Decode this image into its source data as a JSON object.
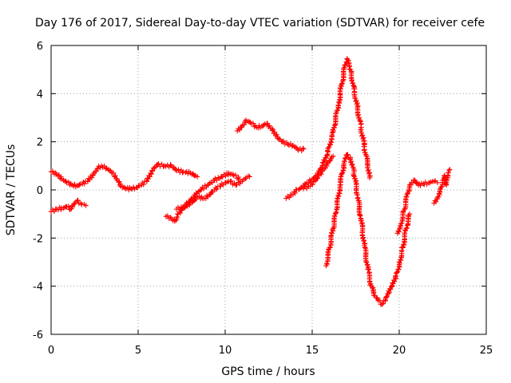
{
  "chart_data": {
    "type": "scatter",
    "title": "Day 176 of 2017, Sidereal Day-to-day VTEC variation (SDTVAR) for receiver cefe",
    "xlabel": "GPS time / hours",
    "ylabel": "SDTVAR / TECUs",
    "xlim": [
      0,
      25
    ],
    "ylim": [
      -6,
      6
    ],
    "xticks": [
      "0",
      "5",
      "10",
      "15",
      "20",
      "25"
    ],
    "yticks": [
      "-6",
      "-4",
      "-2",
      "0",
      "2",
      "4",
      "6"
    ],
    "grid": true,
    "marker": "plus",
    "color": "#ff0000",
    "series": [
      {
        "points": [
          [
            0.0,
            0.75
          ],
          [
            0.3,
            0.65
          ],
          [
            0.6,
            0.45
          ],
          [
            0.9,
            0.3
          ],
          [
            1.2,
            0.2
          ],
          [
            1.5,
            0.18
          ],
          [
            1.8,
            0.25
          ],
          [
            2.1,
            0.35
          ],
          [
            2.4,
            0.6
          ],
          [
            2.7,
            0.9
          ],
          [
            2.9,
            1.0
          ],
          [
            3.2,
            0.9
          ],
          [
            3.5,
            0.7
          ],
          [
            3.8,
            0.4
          ],
          [
            4.0,
            0.15
          ],
          [
            4.3,
            0.05
          ],
          [
            4.6,
            0.05
          ],
          [
            4.9,
            0.1
          ],
          [
            5.2,
            0.2
          ],
          [
            5.5,
            0.35
          ],
          [
            5.8,
            0.8
          ],
          [
            6.1,
            1.05
          ],
          [
            6.5,
            1.0
          ],
          [
            6.9,
            1.0
          ],
          [
            7.2,
            0.8
          ],
          [
            7.6,
            0.75
          ],
          [
            8.0,
            0.7
          ],
          [
            8.4,
            0.55
          ]
        ]
      },
      {
        "points": [
          [
            0.0,
            -0.9
          ],
          [
            0.3,
            -0.8
          ],
          [
            0.6,
            -0.75
          ],
          [
            0.9,
            -0.7
          ],
          [
            1.1,
            -0.8
          ],
          [
            1.3,
            -0.6
          ],
          [
            1.5,
            -0.45
          ],
          [
            1.7,
            -0.55
          ],
          [
            1.9,
            -0.6
          ],
          [
            2.0,
            -0.65
          ]
        ]
      },
      {
        "points": [
          [
            6.6,
            -1.1
          ],
          [
            6.9,
            -1.2
          ],
          [
            7.1,
            -1.3
          ],
          [
            7.3,
            -1.0
          ],
          [
            7.6,
            -0.75
          ],
          [
            7.9,
            -0.5
          ],
          [
            8.2,
            -0.3
          ],
          [
            8.6,
            0.0
          ],
          [
            9.0,
            0.2
          ],
          [
            9.4,
            0.4
          ],
          [
            9.8,
            0.55
          ],
          [
            10.2,
            0.7
          ],
          [
            10.5,
            0.6
          ],
          [
            10.8,
            0.45
          ]
        ]
      },
      {
        "points": [
          [
            7.2,
            -0.8
          ],
          [
            7.6,
            -0.7
          ],
          [
            8.0,
            -0.55
          ],
          [
            8.4,
            -0.3
          ],
          [
            8.8,
            -0.35
          ],
          [
            9.1,
            -0.2
          ],
          [
            9.4,
            0.0
          ],
          [
            9.7,
            0.15
          ],
          [
            10.0,
            0.3
          ],
          [
            10.3,
            0.35
          ],
          [
            10.6,
            0.2
          ],
          [
            10.9,
            0.35
          ],
          [
            11.2,
            0.5
          ],
          [
            11.4,
            0.55
          ]
        ]
      },
      {
        "points": [
          [
            10.7,
            2.45
          ],
          [
            11.0,
            2.7
          ],
          [
            11.2,
            2.9
          ],
          [
            11.5,
            2.75
          ],
          [
            11.8,
            2.6
          ],
          [
            12.1,
            2.65
          ],
          [
            12.4,
            2.75
          ],
          [
            12.7,
            2.55
          ],
          [
            13.0,
            2.2
          ],
          [
            13.3,
            2.0
          ],
          [
            13.6,
            1.9
          ],
          [
            13.9,
            1.85
          ],
          [
            14.2,
            1.65
          ],
          [
            14.5,
            1.7
          ]
        ]
      },
      {
        "points": [
          [
            13.5,
            -0.35
          ],
          [
            13.8,
            -0.2
          ],
          [
            14.1,
            0.0
          ],
          [
            14.4,
            0.1
          ],
          [
            14.7,
            0.3
          ],
          [
            15.0,
            0.45
          ],
          [
            15.3,
            0.6
          ],
          [
            15.6,
            1.0
          ],
          [
            15.9,
            1.6
          ],
          [
            16.2,
            2.4
          ],
          [
            16.5,
            3.5
          ],
          [
            16.7,
            4.4
          ],
          [
            16.9,
            5.2
          ],
          [
            17.0,
            5.45
          ],
          [
            17.2,
            5.0
          ],
          [
            17.4,
            4.2
          ],
          [
            17.6,
            3.4
          ],
          [
            17.8,
            2.6
          ],
          [
            18.0,
            1.8
          ],
          [
            18.2,
            1.0
          ],
          [
            18.3,
            0.5
          ]
        ]
      },
      {
        "points": [
          [
            14.5,
            0.05
          ],
          [
            14.8,
            0.15
          ],
          [
            15.1,
            0.35
          ],
          [
            15.4,
            0.6
          ],
          [
            15.7,
            0.9
          ],
          [
            16.0,
            1.2
          ],
          [
            16.2,
            1.4
          ]
        ]
      },
      {
        "points": [
          [
            15.8,
            -3.15
          ],
          [
            16.0,
            -2.4
          ],
          [
            16.2,
            -1.6
          ],
          [
            16.4,
            -0.8
          ],
          [
            16.6,
            0.2
          ],
          [
            16.8,
            1.0
          ],
          [
            17.0,
            1.45
          ],
          [
            17.2,
            1.35
          ],
          [
            17.4,
            0.7
          ],
          [
            17.6,
            -0.2
          ],
          [
            17.8,
            -1.2
          ],
          [
            18.0,
            -2.3
          ],
          [
            18.2,
            -3.3
          ],
          [
            18.4,
            -4.0
          ],
          [
            18.6,
            -4.4
          ],
          [
            18.8,
            -4.6
          ],
          [
            19.0,
            -4.75
          ],
          [
            19.2,
            -4.6
          ],
          [
            19.4,
            -4.3
          ],
          [
            19.6,
            -4.0
          ],
          [
            19.8,
            -3.6
          ],
          [
            20.0,
            -3.1
          ],
          [
            20.2,
            -2.4
          ],
          [
            20.4,
            -1.6
          ],
          [
            20.6,
            -1.0
          ]
        ]
      },
      {
        "points": [
          [
            19.9,
            -1.8
          ],
          [
            20.1,
            -1.4
          ],
          [
            20.3,
            -0.8
          ],
          [
            20.5,
            -0.1
          ],
          [
            20.7,
            0.3
          ],
          [
            20.9,
            0.4
          ],
          [
            21.1,
            0.2
          ],
          [
            21.4,
            0.25
          ],
          [
            21.7,
            0.3
          ],
          [
            22.0,
            0.35
          ],
          [
            22.2,
            0.3
          ]
        ]
      },
      {
        "points": [
          [
            22.0,
            -0.55
          ],
          [
            22.2,
            -0.3
          ],
          [
            22.4,
            0.1
          ],
          [
            22.5,
            0.4
          ],
          [
            22.6,
            0.6
          ],
          [
            22.7,
            0.2
          ],
          [
            22.8,
            0.5
          ],
          [
            22.9,
            0.85
          ]
        ]
      }
    ]
  }
}
